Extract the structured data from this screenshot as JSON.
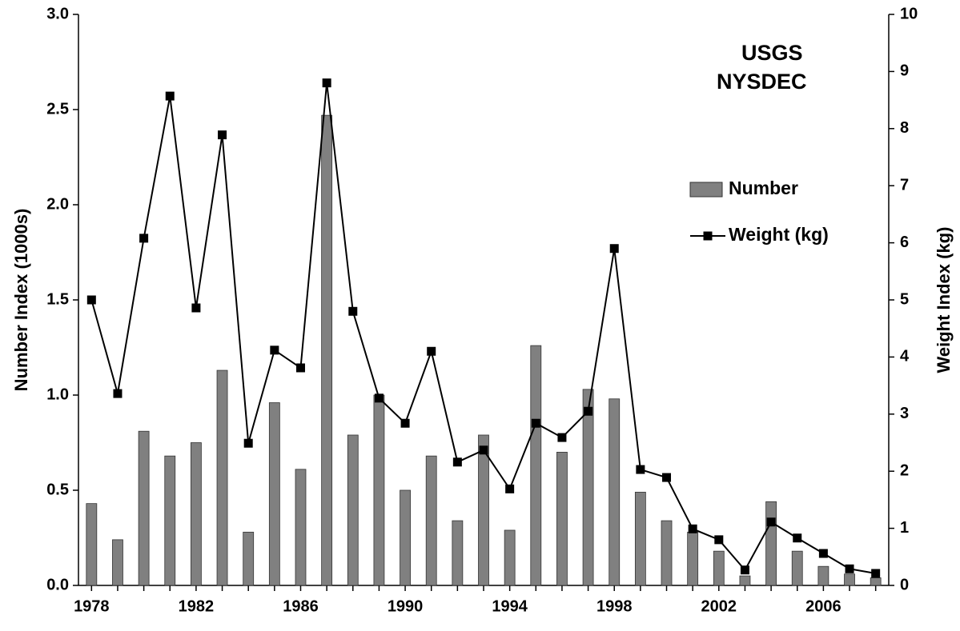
{
  "chart_data": {
    "type": "bar_line",
    "categories": [
      "1978",
      null,
      null,
      null,
      "1982",
      null,
      null,
      null,
      "1986",
      null,
      null,
      null,
      "1990",
      null,
      null,
      null,
      "1994",
      null,
      null,
      null,
      "1998",
      null,
      null,
      null,
      "2002",
      null,
      null,
      null,
      "2006",
      null,
      null
    ],
    "series": [
      {
        "name": "Number",
        "type": "bar",
        "color": "#808080",
        "axis": "y",
        "values": [
          0.43,
          0.24,
          0.81,
          0.68,
          0.75,
          1.13,
          0.28,
          0.96,
          0.61,
          2.47,
          0.79,
          1.0,
          0.5,
          0.68,
          0.34,
          0.79,
          0.29,
          1.26,
          0.7,
          1.03,
          0.98,
          0.49,
          0.34,
          0.28,
          0.18,
          0.05,
          0.44,
          0.18,
          0.1,
          0.06,
          0.04
        ]
      },
      {
        "name": "Weight (kg)",
        "type": "line",
        "color": "#000000",
        "axis": "y2",
        "values": [
          5.0,
          3.36,
          6.08,
          8.57,
          4.86,
          7.89,
          2.49,
          4.12,
          3.81,
          8.8,
          4.8,
          3.28,
          2.84,
          4.1,
          2.16,
          2.37,
          1.69,
          2.84,
          2.59,
          3.05,
          5.9,
          2.03,
          1.89,
          0.99,
          0.8,
          0.27,
          1.11,
          0.83,
          0.56,
          0.29,
          0.21
        ]
      }
    ],
    "ylabel": "Number Index (1000s)",
    "y2label": "Weight Index (kg)",
    "ylim": [
      0,
      3
    ],
    "yticks": [
      {
        "value": 0,
        "label": "0.0"
      },
      0.5,
      {
        "value": 1,
        "label": "1.0"
      },
      1.5,
      {
        "value": 2,
        "label": "2.0"
      },
      2.5,
      {
        "value": 3,
        "label": "3.0"
      }
    ],
    "y2lim": [
      0,
      10
    ],
    "y2ticks": [
      0,
      1,
      2,
      3,
      4,
      5,
      6,
      7,
      8,
      9,
      10
    ],
    "annotations": [
      "USGS",
      "NYSDEC"
    ],
    "grid": false,
    "legend": "right"
  }
}
